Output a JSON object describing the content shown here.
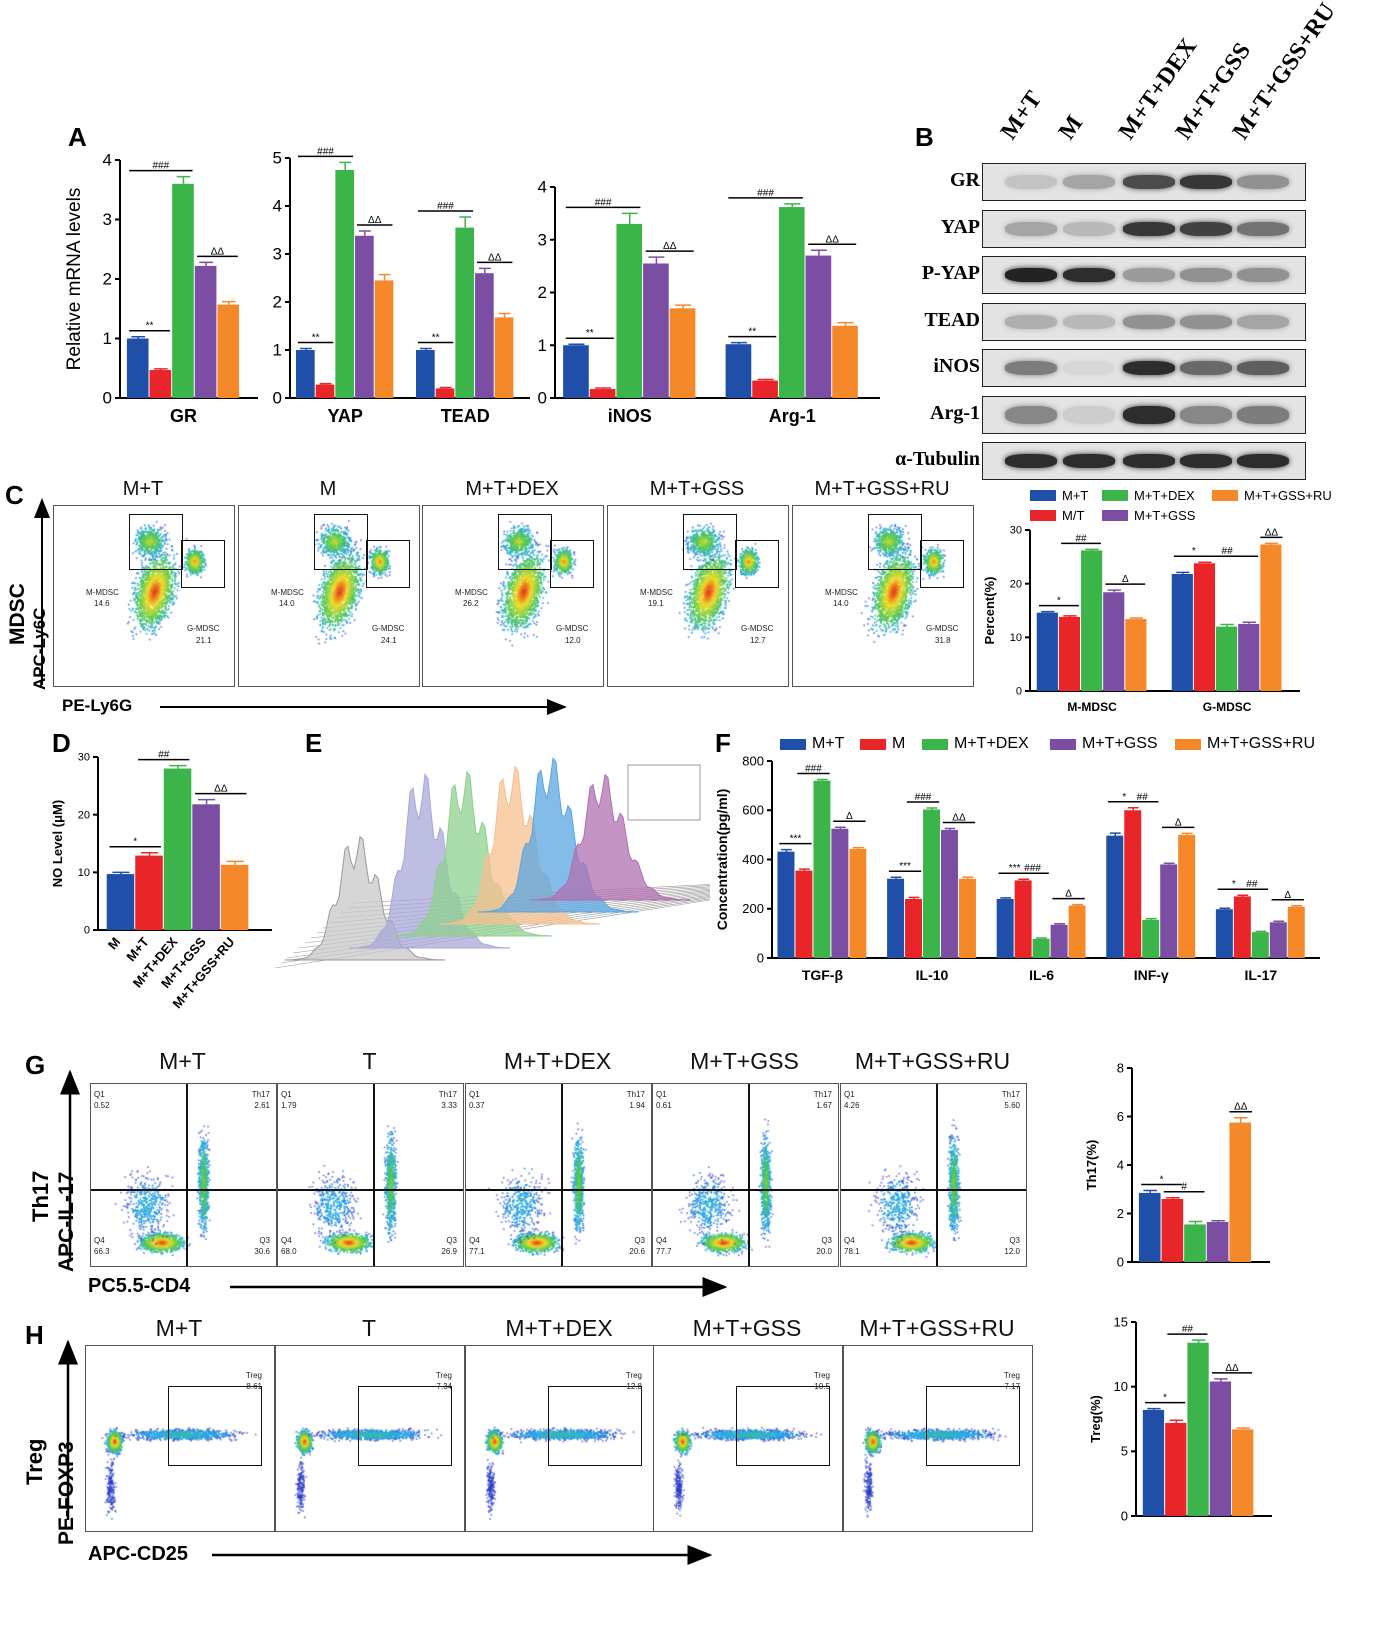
{
  "panel_labels": {
    "A": "A",
    "B": "B",
    "C": "C",
    "D": "D",
    "E": "E",
    "F": "F",
    "G": "G",
    "H": "H"
  },
  "colors": {
    "blue": "#1f4fa8",
    "red": "#e8262a",
    "green": "#3bb54a",
    "purple": "#7b4ea3",
    "orange": "#f5892a"
  },
  "blot": {
    "lanes": [
      "M+T",
      "M",
      "M+T+DEX",
      "M+T+GSS",
      "M+T+GSS+RU"
    ],
    "rows": [
      {
        "name": "GR",
        "intensity": [
          0.15,
          0.3,
          0.75,
          0.85,
          0.4
        ]
      },
      {
        "name": "YAP",
        "intensity": [
          0.3,
          0.2,
          0.85,
          0.8,
          0.55
        ]
      },
      {
        "name": "P-YAP",
        "intensity": [
          0.95,
          0.9,
          0.35,
          0.4,
          0.4
        ]
      },
      {
        "name": "TEAD",
        "intensity": [
          0.25,
          0.2,
          0.4,
          0.4,
          0.3
        ]
      },
      {
        "name": "iNOS",
        "intensity": [
          0.5,
          0.05,
          0.9,
          0.6,
          0.65
        ]
      },
      {
        "name": "Arg-1",
        "intensity": [
          0.45,
          0.1,
          0.9,
          0.45,
          0.5
        ]
      },
      {
        "name": "α-Tubulin",
        "intensity": [
          0.9,
          0.9,
          0.9,
          0.9,
          0.9
        ]
      }
    ]
  },
  "flow_c": {
    "titles": [
      "M+T",
      "M",
      "M+T+DEX",
      "M+T+GSS",
      "M+T+GSS+RU"
    ],
    "gate1": "M-MDSC",
    "gate2": "G-MDSC",
    "m_mdsc": [
      "14.6",
      "14.0",
      "26.2",
      "19.1",
      "14.0"
    ],
    "g_mdsc": [
      "21.1",
      "24.1",
      "12.0",
      "12.7",
      "31.8"
    ],
    "ylabel_main": "MDSC",
    "ylabel": "APC-Ly6C",
    "xlabel": "PE-Ly6G"
  },
  "flow_g": {
    "titles": [
      "M+T",
      "T",
      "M+T+DEX",
      "M+T+GSS",
      "M+T+GSS+RU"
    ],
    "q1_label": "Q1",
    "th17_label": "Th17",
    "q4_label": "Q4",
    "q3_label": "Q3",
    "q1": [
      "0.52",
      "1.79",
      "0.37",
      "0.61",
      "4.26"
    ],
    "th17": [
      "2.61",
      "3.33",
      "1.94",
      "1.67",
      "5.60"
    ],
    "q4": [
      "66.3",
      "68.0",
      "77.1",
      "77.7",
      "78.1"
    ],
    "q3": [
      "30.6",
      "26.9",
      "20.6",
      "20.0",
      "12.0"
    ],
    "ylabel_main": "Th17",
    "ylabel": "APC-IL-17",
    "xlabel": "PC5.5-CD4"
  },
  "flow_h": {
    "titles": [
      "M+T",
      "T",
      "M+T+DEX",
      "M+T+GSS",
      "M+T+GSS+RU"
    ],
    "gate": "Treg",
    "treg": [
      "8.61",
      "7.34",
      "12.8",
      "10.5",
      "7.17"
    ],
    "ylabel_main": "Treg",
    "ylabel": "PE-FOXP3",
    "xlabel": "APC-CD25"
  },
  "legend_c": [
    "M+T",
    "M/T",
    "M+T+DEX",
    "M+T+GSS",
    "M+T+GSS+RU"
  ],
  "legend_f": [
    "M+T",
    "M",
    "M+T+DEX",
    "M+T+GSS",
    "M+T+GSS+RU"
  ],
  "chart_data": [
    {
      "id": "A1",
      "type": "bar",
      "ylabel": "Relative mRNA levels",
      "ylim": [
        0,
        4
      ],
      "yticks": [
        0,
        1,
        2,
        3,
        4
      ],
      "groups": [
        {
          "label": "GR",
          "values": [
            1.0,
            0.47,
            3.6,
            2.22,
            1.57
          ],
          "errors": [
            0.03,
            0.02,
            0.12,
            0.06,
            0.05
          ],
          "sig": [
            [
              "**",
              0,
              1
            ],
            [
              "###",
              0,
              2
            ],
            [
              "ΔΔ",
              3,
              4
            ]
          ]
        }
      ]
    },
    {
      "id": "A2",
      "type": "bar",
      "ylabel": "",
      "ylim": [
        0,
        5
      ],
      "yticks": [
        0,
        1,
        2,
        3,
        4,
        5
      ],
      "groups": [
        {
          "label": "YAP",
          "values": [
            1.0,
            0.28,
            4.75,
            3.38,
            2.45
          ],
          "errors": [
            0.03,
            0.02,
            0.16,
            0.1,
            0.12
          ],
          "sig": [
            [
              "**",
              0,
              1
            ],
            [
              "###",
              0,
              2
            ],
            [
              "ΔΔ",
              3,
              4
            ]
          ]
        },
        {
          "label": "TEAD",
          "values": [
            1.0,
            0.2,
            3.55,
            2.6,
            1.68
          ],
          "errors": [
            0.03,
            0.02,
            0.22,
            0.1,
            0.08
          ],
          "sig": [
            [
              "**",
              0,
              1
            ],
            [
              "###",
              0,
              2
            ],
            [
              "ΔΔ",
              3,
              4
            ]
          ]
        }
      ]
    },
    {
      "id": "A3",
      "type": "bar",
      "ylabel": "",
      "ylim": [
        0,
        4
      ],
      "yticks": [
        0,
        1,
        2,
        3,
        4
      ],
      "groups": [
        {
          "label": "iNOS",
          "values": [
            1.0,
            0.17,
            3.3,
            2.55,
            1.7
          ],
          "errors": [
            0.02,
            0.02,
            0.2,
            0.12,
            0.06
          ],
          "sig": [
            [
              "**",
              0,
              1
            ],
            [
              "###",
              0,
              2
            ],
            [
              "ΔΔ",
              3,
              4
            ]
          ]
        },
        {
          "label": "Arg-1",
          "values": [
            1.02,
            0.33,
            3.62,
            2.7,
            1.37
          ],
          "errors": [
            0.03,
            0.02,
            0.06,
            0.1,
            0.06
          ],
          "sig": [
            [
              "**",
              0,
              1
            ],
            [
              "###",
              0,
              2
            ],
            [
              "ΔΔ",
              3,
              4
            ]
          ]
        }
      ]
    },
    {
      "id": "C",
      "type": "bar",
      "ylabel": "Percent(%)",
      "ylim": [
        0,
        30
      ],
      "yticks": [
        0,
        10,
        20,
        30
      ],
      "groups": [
        {
          "label": "M-MDSC",
          "values": [
            14.6,
            13.8,
            26.2,
            18.4,
            13.4
          ],
          "errors": [
            0.2,
            0.2,
            0.2,
            0.4,
            0.2
          ],
          "sig": [
            [
              "*",
              0,
              1
            ],
            [
              "##",
              1,
              2
            ],
            [
              "Δ",
              3,
              4
            ]
          ]
        },
        {
          "label": "G-MDSC",
          "values": [
            21.8,
            23.8,
            12.0,
            12.5,
            27.3
          ],
          "errors": [
            0.3,
            0.2,
            0.4,
            0.3,
            0.2
          ],
          "sig": [
            [
              "*",
              0,
              1
            ],
            [
              "##",
              1,
              3
            ],
            [
              "ΔΔ",
              4,
              4
            ]
          ]
        }
      ]
    },
    {
      "id": "D",
      "type": "bar",
      "ylabel": "NO Level (μM)",
      "ylim": [
        0,
        30
      ],
      "yticks": [
        0,
        10,
        20,
        30
      ],
      "rotated_labels": true,
      "groups": [
        {
          "label": "",
          "categories": [
            "M",
            "M+T",
            "M+T+DEX",
            "M+T+GSS",
            "M+T+GSS+RU"
          ],
          "values": [
            9.7,
            12.9,
            28.0,
            21.8,
            11.3
          ],
          "errors": [
            0.3,
            0.5,
            0.5,
            0.8,
            0.6
          ],
          "sig": [
            [
              "*",
              0,
              1
            ],
            [
              "##",
              1,
              2
            ],
            [
              "ΔΔ",
              3,
              4
            ]
          ]
        }
      ]
    },
    {
      "id": "F",
      "type": "bar",
      "ylabel": "Concentration(pg/ml)",
      "ylim": [
        0,
        800
      ],
      "yticks": [
        0,
        200,
        400,
        600,
        800
      ],
      "groups": [
        {
          "label": "TGF-β",
          "values": [
            432,
            355,
            720,
            525,
            443
          ],
          "errors": [
            8,
            6,
            5,
            6,
            5
          ],
          "sig": [
            [
              "***",
              0,
              1
            ],
            [
              "###",
              1,
              2
            ],
            [
              "Δ",
              3,
              4
            ]
          ]
        },
        {
          "label": "IL-10",
          "values": [
            322,
            240,
            603,
            520,
            322
          ],
          "errors": [
            6,
            6,
            6,
            6,
            6
          ],
          "sig": [
            [
              "***",
              0,
              1
            ],
            [
              "###",
              1,
              2
            ],
            [
              "ΔΔ",
              3,
              4
            ]
          ]
        },
        {
          "label": "IL-6",
          "values": [
            240,
            315,
            78,
            135,
            213
          ],
          "errors": [
            4,
            5,
            3,
            4,
            4
          ],
          "sig": [
            [
              "***",
              0,
              1
            ],
            [
              "###",
              1,
              2
            ],
            [
              "Δ",
              3,
              4
            ]
          ]
        },
        {
          "label": "INF-γ",
          "values": [
            497,
            600,
            155,
            380,
            500
          ],
          "errors": [
            10,
            10,
            5,
            5,
            6
          ],
          "sig": [
            [
              "*",
              0,
              1
            ],
            [
              "##",
              1,
              2
            ],
            [
              "Δ",
              3,
              4
            ]
          ]
        },
        {
          "label": "IL-17",
          "values": [
            198,
            250,
            105,
            145,
            208
          ],
          "errors": [
            4,
            5,
            3,
            4,
            4
          ],
          "sig": [
            [
              "*",
              0,
              1
            ],
            [
              "##",
              1,
              2
            ],
            [
              "Δ",
              3,
              4
            ]
          ]
        }
      ]
    },
    {
      "id": "G",
      "type": "bar",
      "ylabel": "Th17(%)",
      "ylim": [
        0,
        8
      ],
      "yticks": [
        0,
        2,
        4,
        6,
        8
      ],
      "groups": [
        {
          "label": "",
          "values": [
            2.85,
            2.6,
            1.55,
            1.65,
            5.75
          ],
          "errors": [
            0.1,
            0.05,
            0.12,
            0.05,
            0.2
          ],
          "sig": [
            [
              "*",
              0,
              1
            ],
            [
              "#",
              1,
              2
            ],
            [
              "ΔΔ",
              4,
              4
            ]
          ]
        }
      ]
    },
    {
      "id": "H",
      "type": "bar",
      "ylabel": "Treg(%)",
      "ylim": [
        0,
        15
      ],
      "yticks": [
        0,
        5,
        10,
        15
      ],
      "groups": [
        {
          "label": "",
          "values": [
            8.2,
            7.2,
            13.4,
            10.4,
            6.7
          ],
          "errors": [
            0.1,
            0.2,
            0.2,
            0.2,
            0.1
          ],
          "sig": [
            [
              "*",
              0,
              1
            ],
            [
              "##",
              1,
              2
            ],
            [
              "ΔΔ",
              3,
              4
            ]
          ]
        }
      ]
    }
  ]
}
